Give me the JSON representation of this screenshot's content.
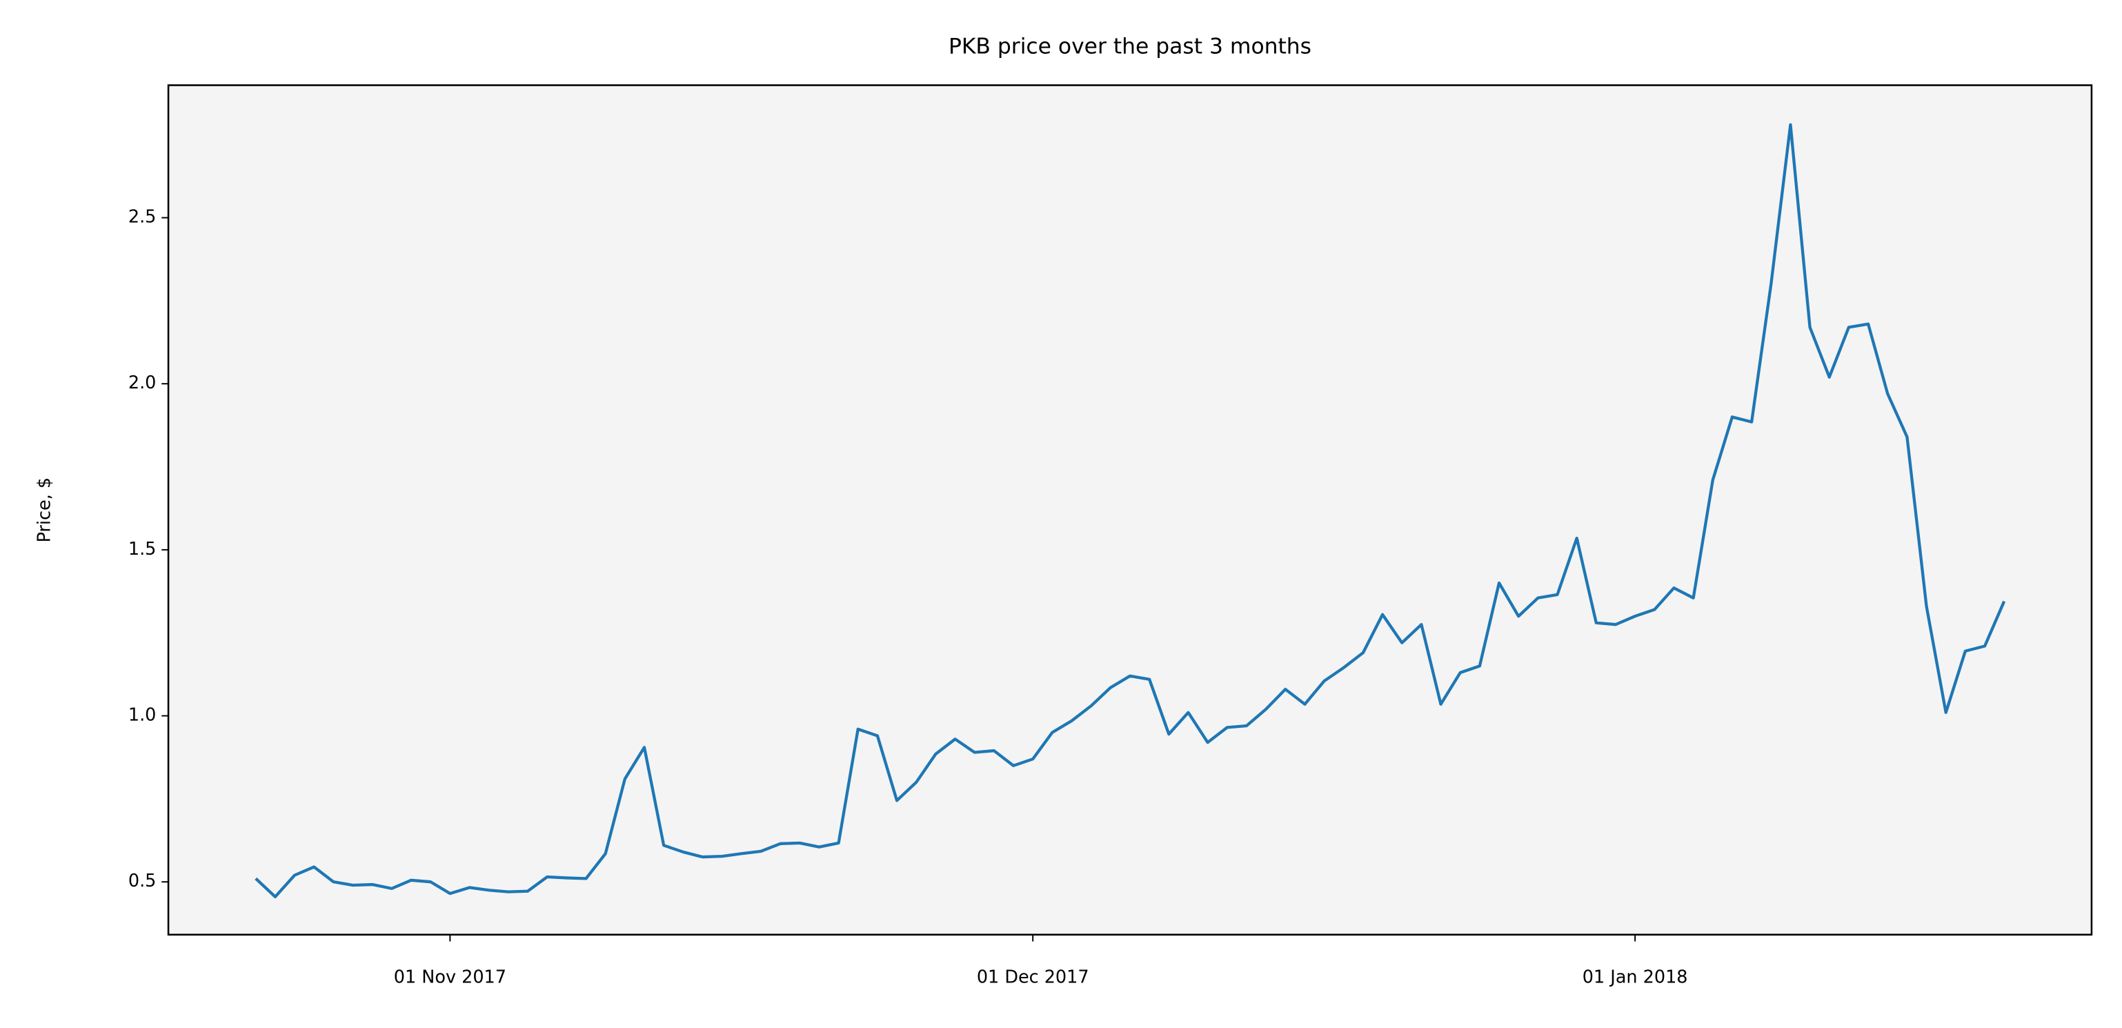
{
  "chart_data": {
    "type": "line",
    "title": "PKB price over the past 3 months",
    "y_label": "Price, $",
    "color": "#1f77b4",
    "background": "#f4f4f4",
    "grid": false,
    "x": [
      "2017-10-22",
      "2017-10-23",
      "2017-10-24",
      "2017-10-25",
      "2017-10-26",
      "2017-10-27",
      "2017-10-28",
      "2017-10-29",
      "2017-10-30",
      "2017-10-31",
      "2017-11-01",
      "2017-11-02",
      "2017-11-03",
      "2017-11-04",
      "2017-11-05",
      "2017-11-06",
      "2017-11-07",
      "2017-11-08",
      "2017-11-09",
      "2017-11-10",
      "2017-11-11",
      "2017-11-12",
      "2017-11-13",
      "2017-11-14",
      "2017-11-15",
      "2017-11-16",
      "2017-11-17",
      "2017-11-18",
      "2017-11-19",
      "2017-11-20",
      "2017-11-21",
      "2017-11-22",
      "2017-11-23",
      "2017-11-24",
      "2017-11-25",
      "2017-11-26",
      "2017-11-27",
      "2017-11-28",
      "2017-11-29",
      "2017-11-30",
      "2017-12-01",
      "2017-12-02",
      "2017-12-03",
      "2017-12-04",
      "2017-12-05",
      "2017-12-06",
      "2017-12-07",
      "2017-12-08",
      "2017-12-09",
      "2017-12-10",
      "2017-12-11",
      "2017-12-12",
      "2017-12-13",
      "2017-12-14",
      "2017-12-15",
      "2017-12-16",
      "2017-12-17",
      "2017-12-18",
      "2017-12-19",
      "2017-12-20",
      "2017-12-21",
      "2017-12-22",
      "2017-12-23",
      "2017-12-24",
      "2017-12-25",
      "2017-12-26",
      "2017-12-27",
      "2017-12-28",
      "2017-12-29",
      "2017-12-30",
      "2017-12-31",
      "2018-01-01",
      "2018-01-02",
      "2018-01-03",
      "2018-01-04",
      "2018-01-05",
      "2018-01-06",
      "2018-01-07",
      "2018-01-08",
      "2018-01-09",
      "2018-01-10",
      "2018-01-11",
      "2018-01-12",
      "2018-01-13",
      "2018-01-14",
      "2018-01-15",
      "2018-01-16",
      "2018-01-17",
      "2018-01-18",
      "2018-01-19",
      "2018-01-20"
    ],
    "values": [
      0.51,
      0.455,
      0.52,
      0.545,
      0.5,
      0.49,
      0.492,
      0.48,
      0.505,
      0.5,
      0.465,
      0.483,
      0.475,
      0.47,
      0.472,
      0.515,
      0.512,
      0.51,
      0.585,
      0.81,
      0.905,
      0.61,
      0.59,
      0.575,
      0.577,
      0.585,
      0.592,
      0.615,
      0.617,
      0.605,
      0.617,
      0.96,
      0.94,
      0.745,
      0.8,
      0.885,
      0.93,
      0.89,
      0.895,
      0.85,
      0.87,
      0.95,
      0.985,
      1.03,
      1.085,
      1.12,
      1.11,
      0.945,
      1.01,
      0.92,
      0.965,
      0.97,
      1.02,
      1.08,
      1.035,
      1.105,
      1.145,
      1.19,
      1.305,
      1.22,
      1.275,
      1.035,
      1.13,
      1.15,
      1.4,
      1.3,
      1.355,
      1.365,
      1.535,
      1.28,
      1.275,
      1.3,
      1.32,
      1.385,
      1.355,
      1.71,
      1.9,
      1.885,
      2.3,
      2.78,
      2.17,
      2.02,
      2.17,
      2.18,
      1.97,
      1.84,
      1.33,
      1.01,
      1.195,
      1.21,
      1.345
    ],
    "xlim": [
      "2017-10-17T12:00",
      "2018-01-24T12:00"
    ],
    "xticks": [
      {
        "value": "2017-11-01",
        "label": "01 Nov 2017"
      },
      {
        "value": "2017-12-01",
        "label": "01 Dec 2017"
      },
      {
        "value": "2018-01-01",
        "label": "01 Jan 2018"
      }
    ],
    "ylim": [
      0.341,
      2.899
    ],
    "yticks": [
      0.5,
      {
        "value": 1,
        "label": "1.0"
      },
      1.5,
      {
        "value": 2,
        "label": "2.0"
      },
      2.5
    ]
  }
}
